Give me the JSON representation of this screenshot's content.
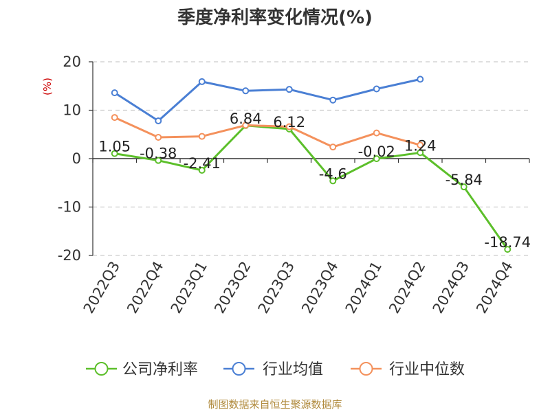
{
  "chart_data": {
    "type": "line",
    "title": "季度净利率变化情况(%)",
    "ylabel": "(%)",
    "xlabel": "",
    "ylim": [
      -20,
      20
    ],
    "yticks": [
      20,
      10,
      0,
      -10,
      -20
    ],
    "grid": "horizontal dashed",
    "legend_position": "bottom",
    "categories": [
      "2022Q3",
      "2022Q4",
      "2023Q1",
      "2023Q2",
      "2023Q3",
      "2023Q4",
      "2024Q1",
      "2024Q2",
      "2024Q3",
      "2024Q4"
    ],
    "series": [
      {
        "name": "公司净利率",
        "color": "#5cbf2a",
        "values": [
          1.05,
          -0.38,
          -2.41,
          6.84,
          6.12,
          -4.6,
          -0.02,
          1.24,
          -5.84,
          -18.74
        ],
        "labels": [
          "1.05",
          "-0.38",
          "-2.41",
          "6.84",
          "6.12",
          "-4.6",
          "-0.02",
          "1.24",
          "-5.84",
          "-18.74"
        ]
      },
      {
        "name": "行业均值",
        "color": "#4a7fd4",
        "values": [
          13.6,
          7.8,
          15.9,
          14.0,
          14.3,
          12.1,
          14.4,
          16.4,
          null,
          null
        ]
      },
      {
        "name": "行业中位数",
        "color": "#f4915c",
        "values": [
          8.5,
          4.4,
          4.6,
          6.9,
          6.6,
          2.4,
          5.3,
          2.8,
          null,
          null
        ]
      }
    ]
  },
  "footer": "制图数据来自恒生聚源数据库"
}
